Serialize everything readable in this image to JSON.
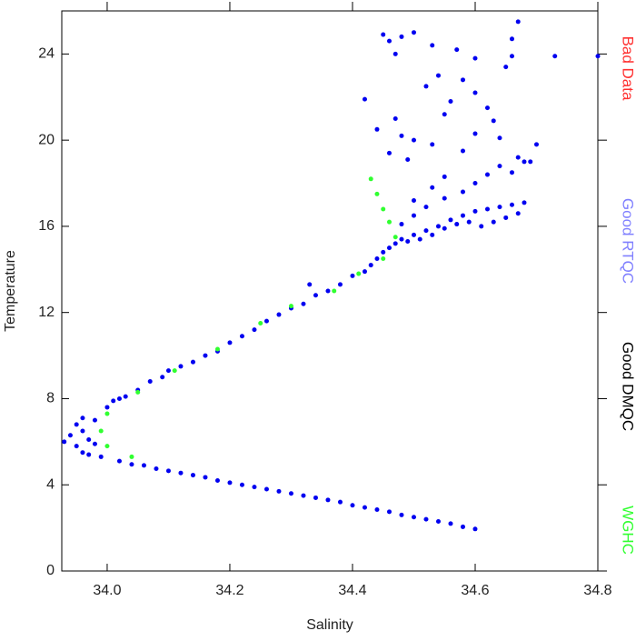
{
  "chart_data": {
    "type": "scatter",
    "x_label": "Salinity",
    "y_label": "Temperature",
    "xlim": [
      33.926,
      34.8
    ],
    "ylim": [
      0,
      26
    ],
    "xticks": [
      {
        "value": 34,
        "label": "34.0"
      },
      34.2,
      34.4,
      34.6,
      34.8
    ],
    "yticks": [
      0,
      4,
      8,
      12,
      16,
      20,
      24
    ],
    "legend_position": "right",
    "series": [
      {
        "name": "Bad Data",
        "color": "#ff3030",
        "x": [],
        "y": []
      },
      {
        "name": "Good RTQC",
        "color": "#8080ff",
        "x": [],
        "y": []
      },
      {
        "name": "Good DMQC",
        "color": "#000000",
        "marker_color": "#0000f0",
        "x": [
          34.02,
          34.04,
          34.06,
          34.08,
          34.1,
          34.12,
          34.14,
          34.16,
          34.18,
          34.2,
          34.22,
          34.24,
          34.26,
          34.28,
          34.3,
          34.32,
          34.34,
          34.36,
          34.38,
          34.4,
          34.42,
          34.44,
          34.46,
          34.48,
          34.5,
          34.52,
          34.54,
          34.56,
          34.58,
          34.6,
          33.93,
          33.94,
          33.95,
          33.95,
          33.96,
          33.96,
          33.97,
          33.97,
          33.98,
          33.98,
          33.99,
          34.0,
          33.96,
          34.01,
          34.02,
          34.03,
          34.05,
          34.07,
          34.09,
          34.1,
          34.12,
          34.14,
          34.16,
          34.18,
          34.2,
          34.22,
          34.24,
          34.26,
          34.28,
          34.3,
          34.32,
          34.34,
          34.33,
          34.36,
          34.38,
          34.4,
          34.42,
          34.43,
          34.44,
          34.45,
          34.46,
          34.47,
          34.48,
          34.49,
          34.5,
          34.51,
          34.52,
          34.53,
          34.54,
          34.55,
          34.56,
          34.57,
          34.58,
          34.59,
          34.6,
          34.62,
          34.64,
          34.66,
          34.68,
          34.67,
          34.65,
          34.63,
          34.61,
          34.5,
          34.52,
          34.55,
          34.58,
          34.6,
          34.62,
          34.64,
          34.66,
          34.67,
          34.68,
          34.48,
          34.5,
          34.53,
          34.55,
          34.48,
          34.5,
          34.46,
          34.47,
          34.53,
          34.57,
          34.6,
          34.67,
          34.66,
          34.73,
          34.7,
          34.69,
          34.52,
          34.54,
          34.56,
          34.58,
          34.62,
          34.63,
          34.6,
          34.64,
          34.5,
          34.47,
          34.48,
          34.42,
          34.44,
          34.46,
          34.49,
          34.53,
          34.58,
          34.65,
          34.6,
          34.55,
          34.45,
          34.8,
          34.66
        ],
        "y": [
          5.1,
          4.95,
          4.9,
          4.75,
          4.65,
          4.55,
          4.45,
          4.35,
          4.2,
          4.1,
          4.0,
          3.9,
          3.8,
          3.7,
          3.6,
          3.5,
          3.4,
          3.3,
          3.2,
          3.05,
          2.95,
          2.85,
          2.75,
          2.6,
          2.5,
          2.4,
          2.3,
          2.2,
          2.05,
          1.95,
          6.0,
          6.3,
          5.8,
          6.8,
          5.5,
          6.5,
          5.4,
          6.1,
          5.9,
          7.0,
          5.3,
          7.6,
          7.1,
          7.9,
          8.0,
          8.1,
          8.4,
          8.8,
          9.0,
          9.3,
          9.5,
          9.7,
          10.0,
          10.2,
          10.6,
          10.9,
          11.2,
          11.6,
          11.9,
          12.2,
          12.4,
          12.8,
          13.3,
          13.0,
          13.3,
          13.7,
          13.9,
          14.2,
          14.5,
          14.8,
          15.0,
          15.2,
          15.4,
          15.3,
          15.6,
          15.4,
          15.8,
          15.6,
          16.0,
          15.9,
          16.3,
          16.1,
          16.5,
          16.2,
          16.7,
          16.8,
          16.9,
          17.0,
          17.1,
          16.6,
          16.4,
          16.2,
          16.0,
          16.5,
          16.9,
          17.3,
          17.6,
          18.0,
          18.4,
          18.8,
          18.5,
          19.2,
          19.0,
          16.1,
          17.2,
          17.8,
          18.3,
          24.8,
          25.0,
          24.6,
          24.0,
          24.4,
          24.2,
          23.8,
          25.5,
          24.7,
          23.9,
          19.8,
          19.0,
          22.5,
          23.0,
          21.8,
          22.8,
          21.5,
          20.9,
          20.3,
          20.1,
          20.0,
          21.0,
          20.2,
          21.9,
          20.5,
          19.4,
          19.1,
          19.8,
          19.5,
          23.4,
          22.2,
          21.2,
          24.9,
          23.9,
          23.9
        ]
      },
      {
        "name": "WGHC",
        "color": "#30ff30",
        "x": [
          34.43,
          34.44,
          34.45,
          34.46,
          34.47,
          34.45,
          34.41,
          34.37,
          34.3,
          34.25,
          34.18,
          34.11,
          34.05,
          34.0,
          33.99,
          34.0,
          34.04
        ],
        "y": [
          18.2,
          17.5,
          16.8,
          16.2,
          15.5,
          14.5,
          13.8,
          13.0,
          12.3,
          11.5,
          10.3,
          9.3,
          8.3,
          7.3,
          6.5,
          5.8,
          5.3
        ]
      }
    ]
  }
}
